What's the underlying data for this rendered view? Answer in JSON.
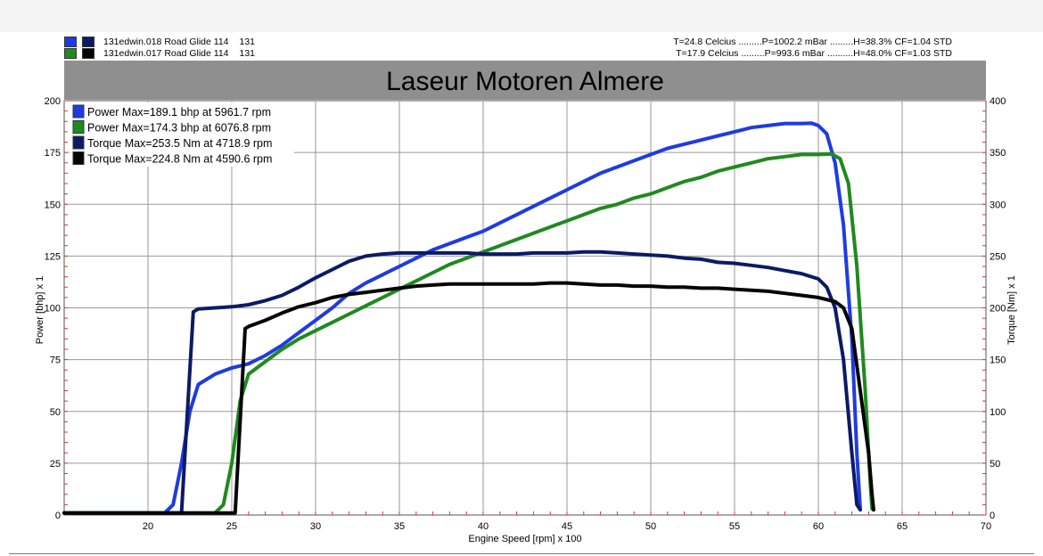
{
  "runs": [
    {
      "file": "131edwin.018",
      "label": "Road Glide 114",
      "number": "131",
      "power_color": "#1f3be0",
      "torque_color": "#0c1a66",
      "conditions": "T=24.8 Celcius .........P=1002.2 mBar .........H=38.3% CF=1.04 STD"
    },
    {
      "file": "131edwin.017",
      "label": "Road Glide 114",
      "number": "131",
      "power_color": "#1f8a1f",
      "torque_color": "#050505",
      "conditions": "T=17.9 Celcius .........P=993.6 mBar ..........H=48.0% CF=1.03 STD"
    }
  ],
  "chart_data": {
    "type": "line",
    "title": "Laseur Motoren Almere",
    "xlabel": "Engine Speed [rpm] x 100",
    "ylabel_left": "Power [bhp] x 1",
    "ylabel_right": "Torque [Nm] x 1",
    "xlim": [
      15,
      70
    ],
    "ylim_left": [
      0,
      200
    ],
    "ylim_right": [
      0,
      400
    ],
    "x_ticks": [
      20,
      25,
      30,
      35,
      40,
      45,
      50,
      55,
      60,
      65,
      70
    ],
    "y_ticks_left": [
      0,
      25,
      50,
      75,
      100,
      125,
      150,
      175,
      200
    ],
    "y_ticks_right": [
      0,
      50,
      100,
      150,
      200,
      250,
      300,
      350,
      400
    ],
    "grid": true,
    "legend_position": "top-left",
    "series": [
      {
        "name": "Power  Max=189.1 bhp at 5961.7 rpm",
        "axis": "left",
        "color": "#1f3be0",
        "x": [
          15,
          21,
          21.5,
          22,
          22.5,
          23,
          24,
          25,
          26,
          27,
          28,
          29,
          30,
          31,
          32,
          33,
          34,
          35,
          36,
          37,
          38,
          39,
          40,
          41,
          42,
          43,
          44,
          45,
          46,
          47,
          48,
          49,
          50,
          51,
          52,
          53,
          54,
          55,
          56,
          57,
          58,
          59,
          59.6,
          60,
          60.5,
          61,
          61.5,
          62,
          62.3,
          62.5
        ],
        "y": [
          1,
          1,
          5,
          25,
          50,
          63,
          68,
          71,
          73,
          77,
          82,
          88,
          94,
          100,
          107,
          112,
          116,
          120,
          124,
          128,
          131,
          134,
          137,
          141,
          145,
          149,
          153,
          157,
          161,
          165,
          168,
          171,
          174,
          177,
          179,
          181,
          183,
          185,
          187,
          188,
          189,
          189,
          189.1,
          188,
          184,
          170,
          140,
          85,
          30,
          3
        ]
      },
      {
        "name": "Power  Max=174.3 bhp at 6076.8 rpm",
        "axis": "left",
        "color": "#1f8a1f",
        "x": [
          15,
          24,
          24.5,
          25,
          25.5,
          26,
          27,
          28,
          29,
          30,
          31,
          32,
          33,
          34,
          35,
          36,
          37,
          38,
          39,
          40,
          41,
          42,
          43,
          44,
          45,
          46,
          47,
          48,
          49,
          50,
          51,
          52,
          53,
          54,
          55,
          56,
          57,
          58,
          59,
          60,
          60.8,
          61.3,
          61.8,
          62.3,
          62.8,
          63.1,
          63.2
        ],
        "y": [
          1,
          1,
          5,
          25,
          55,
          68,
          74,
          80,
          85,
          89,
          93,
          97,
          101,
          105,
          109,
          113,
          117,
          121,
          124,
          127,
          130,
          133,
          136,
          139,
          142,
          145,
          148,
          150,
          153,
          155,
          158,
          161,
          163,
          166,
          168,
          170,
          172,
          173,
          174,
          174,
          174.3,
          172,
          160,
          120,
          60,
          15,
          3
        ]
      },
      {
        "name": "Torque  Max=253.5 Nm at 4718.9 rpm",
        "axis": "right",
        "color": "#0c1a66",
        "x": [
          15,
          22,
          22.7,
          23,
          24,
          25,
          26,
          27,
          28,
          29,
          30,
          31,
          32,
          33,
          34,
          35,
          36,
          37,
          38,
          39,
          40,
          41,
          42,
          43,
          44,
          45,
          46,
          47,
          48,
          49,
          50,
          51,
          52,
          53,
          54,
          55,
          56,
          57,
          58,
          59,
          60,
          60.5,
          61,
          61.5,
          62,
          62.3,
          62.5
        ],
        "y": [
          2,
          2,
          196,
          199,
          200,
          201,
          203,
          207,
          212,
          220,
          229,
          237,
          245,
          250,
          252,
          253,
          253,
          253,
          253,
          253,
          252,
          252,
          252,
          253,
          253,
          253,
          254,
          254,
          253,
          252,
          251,
          250,
          248,
          247,
          244,
          243,
          241,
          239,
          236,
          233,
          228,
          220,
          200,
          150,
          60,
          10,
          5
        ]
      },
      {
        "name": "Torque  Max=224.8 Nm at 4590.6 rpm",
        "axis": "right",
        "color": "#050505",
        "x": [
          15,
          25.2,
          25.8,
          26,
          27,
          28,
          29,
          30,
          31,
          32,
          33,
          34,
          35,
          36,
          37,
          38,
          39,
          40,
          41,
          42,
          43,
          44,
          45,
          46,
          47,
          48,
          49,
          50,
          51,
          52,
          53,
          54,
          55,
          56,
          57,
          58,
          59,
          60,
          61,
          61.5,
          62,
          62.5,
          63,
          63.2,
          63.3
        ],
        "y": [
          2,
          2,
          180,
          182,
          188,
          195,
          201,
          205,
          210,
          213,
          215,
          217,
          219,
          221,
          222,
          223,
          223,
          223,
          223,
          223,
          223,
          224,
          224,
          223,
          222,
          222,
          221,
          221,
          220,
          220,
          219,
          219,
          218,
          217,
          216,
          214,
          212,
          210,
          206,
          200,
          180,
          120,
          60,
          20,
          5
        ]
      }
    ]
  }
}
